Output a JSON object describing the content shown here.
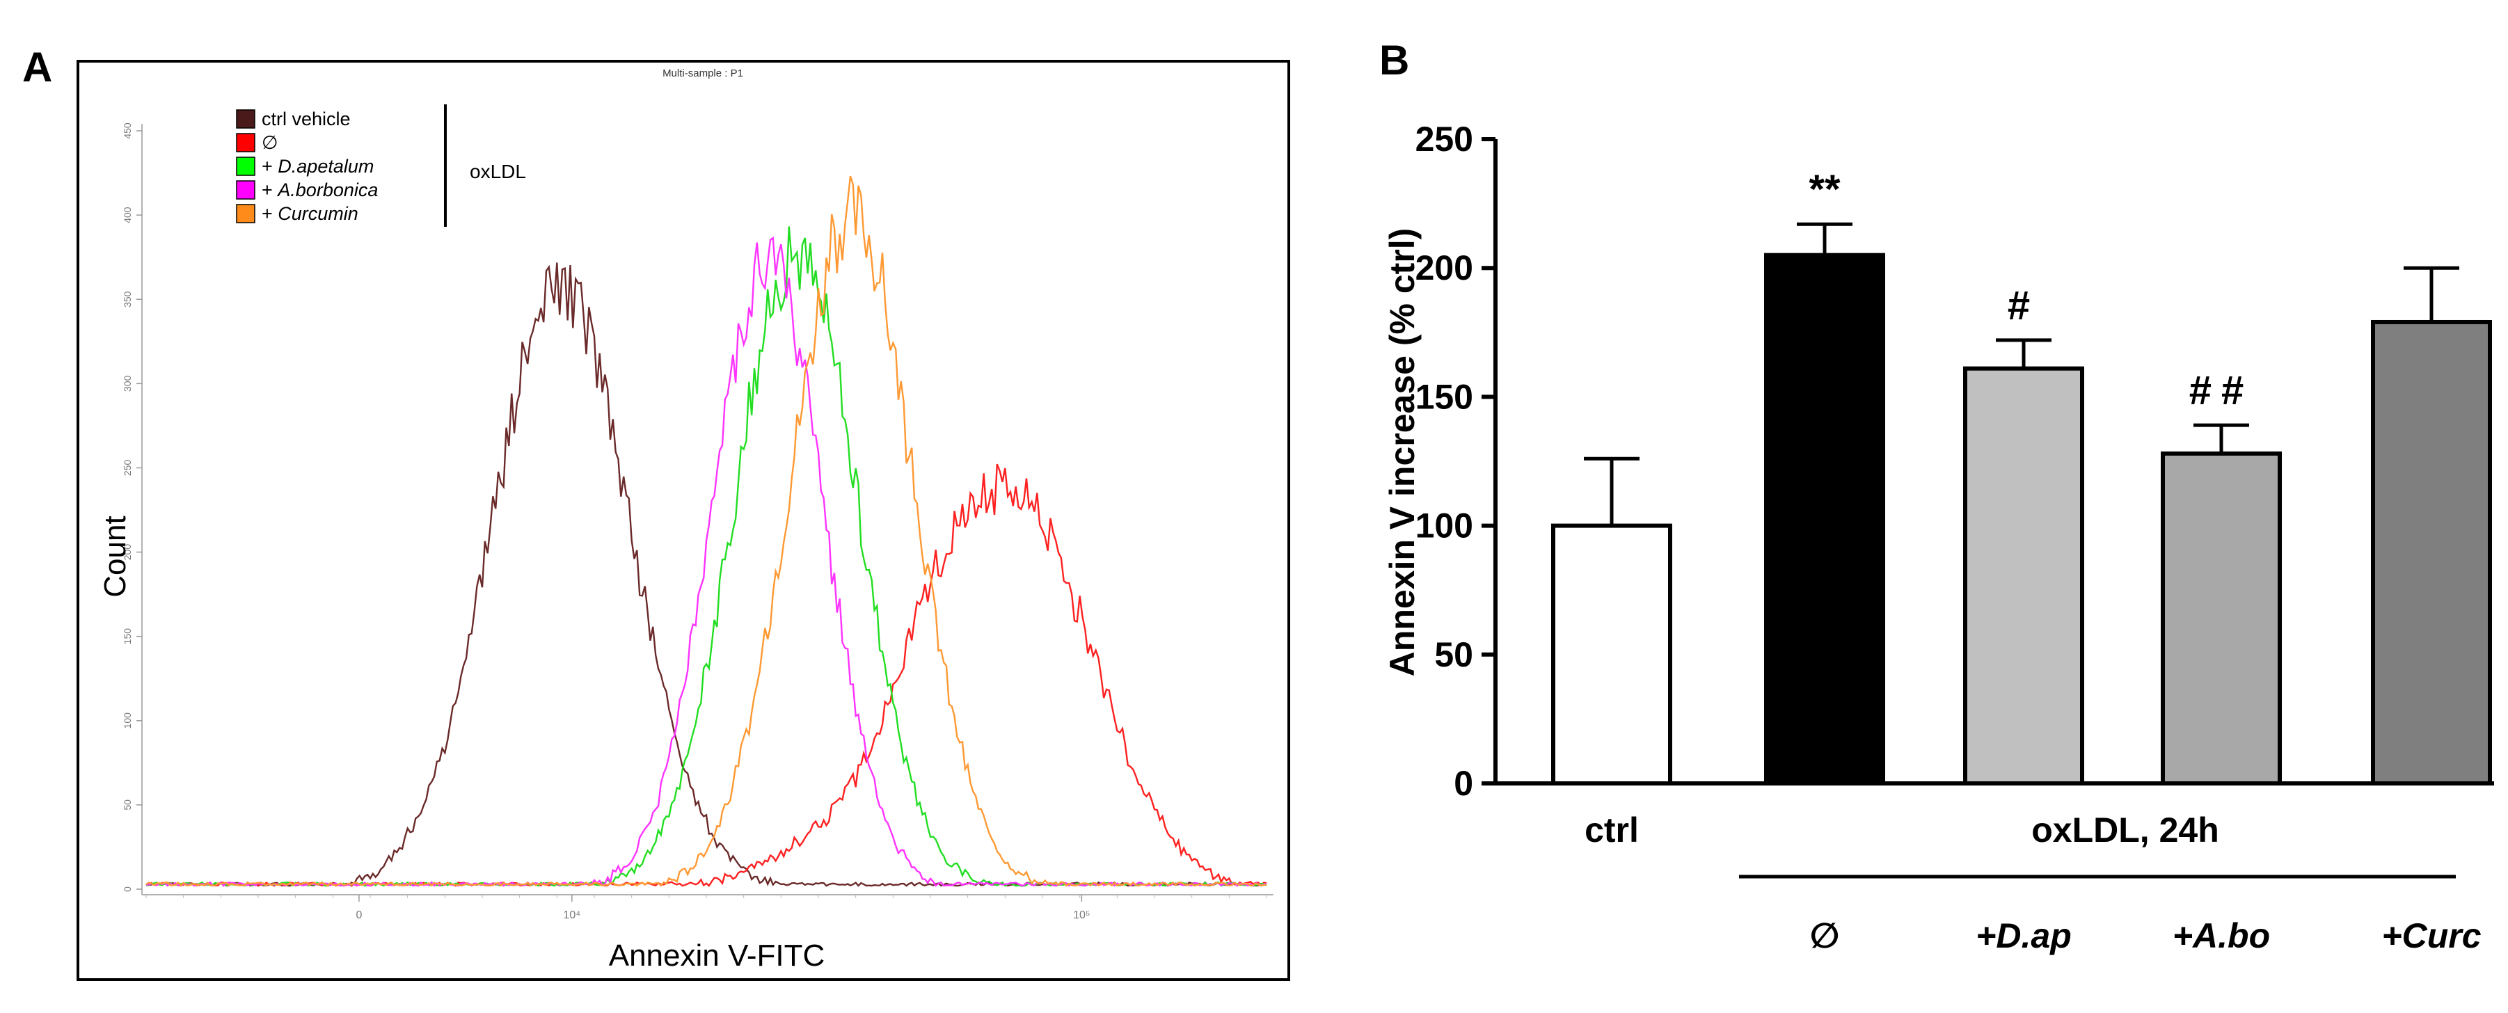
{
  "panel_a": {
    "letter": "A",
    "chart_data": {
      "type": "line",
      "title": "Multi-sample : P1",
      "xlabel": "Annexin V-FITC",
      "ylabel": "Count",
      "ylim": [
        0,
        450
      ],
      "yticks": [
        0,
        50,
        100,
        150,
        200,
        250,
        300,
        350,
        400,
        450
      ],
      "xticks": [
        "0",
        "10⁴",
        "10⁵"
      ],
      "legend": {
        "placement": "top-left",
        "bracket_label": "oxLDL",
        "entries": [
          {
            "prefix": "",
            "name": "ctrl vehicle",
            "italic": false,
            "color": "#4a1a1a"
          },
          {
            "prefix": "",
            "name": "∅",
            "italic": true,
            "color": "#ff0000"
          },
          {
            "prefix": "+ ",
            "name": "D.apetalum",
            "italic": true,
            "color": "#00ff00"
          },
          {
            "prefix": "+ ",
            "name": "A.borbonica",
            "italic": true,
            "color": "#ff00ff"
          },
          {
            "prefix": "+ ",
            "name": "Curcumin",
            "italic": true,
            "color": "#ff8c1a"
          }
        ]
      },
      "series": [
        {
          "name": "ctrl vehicle",
          "color": "#6b2a2a",
          "peak_position": 0.37,
          "peak_count": 357,
          "width": 0.062
        },
        {
          "name": "∅",
          "color": "#ff2020",
          "peak_position": 0.775,
          "peak_count": 230,
          "width": 0.07
        },
        {
          "name": "+ D.apetalum",
          "color": "#22dd22",
          "peak_position": 0.58,
          "peak_count": 378,
          "width": 0.055
        },
        {
          "name": "+ A.borbonica",
          "color": "#ff33ff",
          "peak_position": 0.555,
          "peak_count": 372,
          "width": 0.05
        },
        {
          "name": "+ Curcumin",
          "color": "#ff9933",
          "peak_position": 0.63,
          "peak_count": 400,
          "width": 0.055
        }
      ]
    }
  },
  "panel_b": {
    "letter": "B",
    "chart_data": {
      "type": "bar",
      "ylabel": "Annexin V increase (% ctrl)",
      "ylim": [
        0,
        250
      ],
      "yticks": [
        "0",
        "50",
        "100",
        "150",
        "200",
        "250"
      ],
      "categories": [
        "ctrl",
        "∅",
        "+D.ap",
        "+A.bo",
        "+Curc"
      ],
      "category_label_indices": [
        1,
        2,
        3,
        4
      ],
      "ctrl_label": "ctrl",
      "group_label": "oxLDL, 24h",
      "values": [
        100,
        205,
        161,
        128,
        179
      ],
      "errors": [
        26,
        12,
        11,
        11,
        21
      ],
      "bar_colors": [
        "#ffffff",
        "#000000",
        "#c0c0c0",
        "#a8a8a8",
        "#7f7f7f"
      ],
      "annotations": [
        "",
        "**",
        "#",
        "##",
        ""
      ]
    }
  }
}
